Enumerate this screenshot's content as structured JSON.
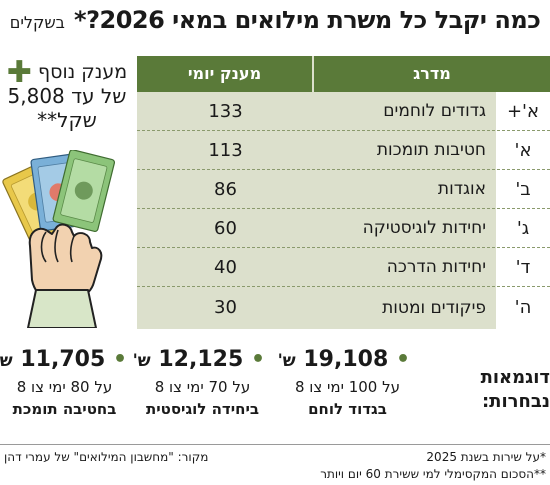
{
  "header": {
    "title": "כמה יקבל כל משרת מילואים במאי 2026?*",
    "unit": "בשקלים"
  },
  "table": {
    "col_rank": "מדרג",
    "col_pay": "מענק יומי",
    "rows": [
      {
        "grade": "א'+",
        "name": "גדודים לוחמים",
        "pay": "133"
      },
      {
        "grade": "א'",
        "name": "חטיבות תומכות",
        "pay": "113"
      },
      {
        "grade": "ב'",
        "name": "אוגדות",
        "pay": "86"
      },
      {
        "grade": "ג'",
        "name": "יחידות לוגיסטיקה",
        "pay": "60"
      },
      {
        "grade": "ד'",
        "name": "יחידות הדרכה",
        "pay": "40"
      },
      {
        "grade": "ה'",
        "name": "פיקודים ומטות",
        "pay": "30"
      }
    ]
  },
  "bonus": {
    "plus": "✚",
    "line1": "מענק נוסף",
    "line2": "של עד 5,808",
    "line3": "שקל**"
  },
  "examples": {
    "label_line1": "דוגמאות",
    "label_line2": "נבחרות:",
    "bullet": "•",
    "cards": [
      {
        "amount": "19,108",
        "currency": "ש'",
        "desc1": "על 100 ימי צו 8",
        "desc2": "בגדוד לוחם"
      },
      {
        "amount": "12,125",
        "currency": "ש'",
        "desc1": "על 70 ימי צו 8",
        "desc2": "ביחידה לוגיסטית"
      },
      {
        "amount": "11,705",
        "currency": "ש'",
        "desc1": "על 80 ימי צו 8",
        "desc2": "בחטיבה תומכת"
      }
    ]
  },
  "footer": {
    "note1": "*על שירות בשנת 2025",
    "note2": "**הסכום המקסימלי למי ששירת 60 יום ויותר",
    "source": "מקור: \"מחשבון המילואים\" של עמרי דהן"
  },
  "colors": {
    "accent_green": "#5a7a39",
    "table_bg": "#dce0cc",
    "sleeve": "#d8e6c8"
  },
  "icons": {
    "illustration": "hand-holding-banknotes-icon"
  }
}
